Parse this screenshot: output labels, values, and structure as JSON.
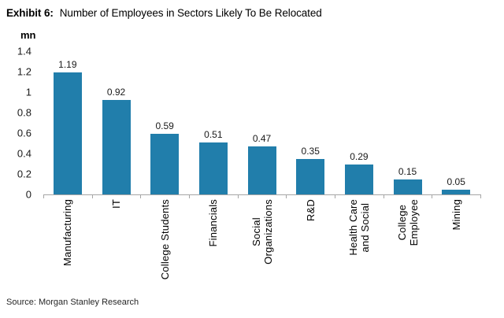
{
  "title": {
    "label": "Exhibit 6:",
    "text": "Number of Employees in Sectors Likely To Be Relocated"
  },
  "source": "Source: Morgan Stanley Research",
  "chart_data": {
    "type": "bar",
    "title": "Exhibit 6: Number of Employees in Sectors Likely To Be Relocated",
    "unit_label": "mn",
    "ylabel": "mn",
    "xlabel": "",
    "categories": [
      "Manufacturing",
      "IT",
      "College Students",
      "Financials",
      "Social Organizations",
      "R&D",
      "Health Care and Social",
      "College Employee",
      "Mining"
    ],
    "categories_display": [
      [
        "Manufacturing"
      ],
      [
        "IT"
      ],
      [
        "College Students"
      ],
      [
        "Financials"
      ],
      [
        "Social",
        "Organizations"
      ],
      [
        "R&D"
      ],
      [
        "Health Care",
        "and Social"
      ],
      [
        "College",
        "Employee"
      ],
      [
        "Mining"
      ]
    ],
    "values": [
      1.19,
      0.92,
      0.59,
      0.51,
      0.47,
      0.35,
      0.29,
      0.15,
      0.05
    ],
    "value_labels": [
      "1.19",
      "0.92",
      "0.59",
      "0.51",
      "0.47",
      "0.35",
      "0.29",
      "0.15",
      "0.05"
    ],
    "ylim": [
      0,
      1.4
    ],
    "yticks": [
      0,
      0.2,
      0.4,
      0.6,
      0.8,
      1,
      1.2,
      1.4
    ],
    "ytick_labels": [
      "0",
      "0.2",
      "0.4",
      "0.6",
      "0.8",
      "1",
      "1.2",
      "1.4"
    ],
    "bar_color": "#217EAB",
    "axis_color": "#A6A6A6",
    "grid": false,
    "legend": false
  }
}
